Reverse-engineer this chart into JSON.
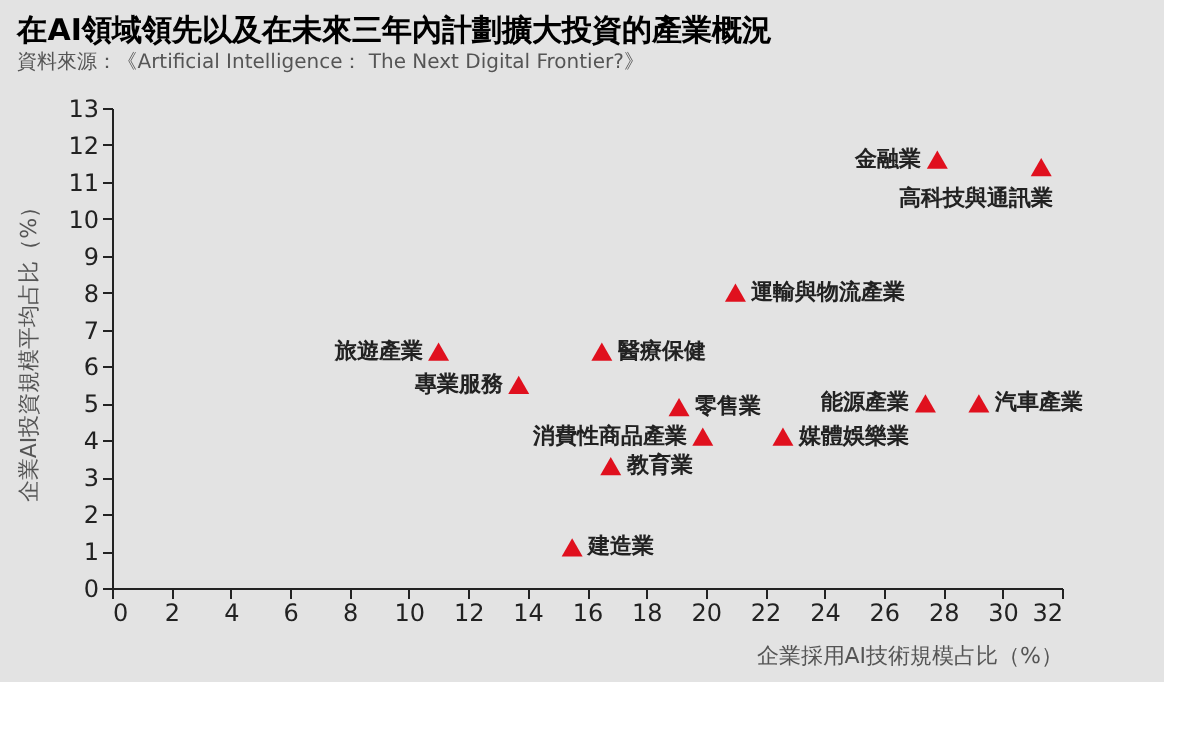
{
  "chart_data": {
    "type": "scatter",
    "title": "在AI領域領先以及在未來三年內計劃擴大投資的產業概況",
    "subtitle": "資料來源：《Artificial Intelligence： The Next Digital Frontier?》",
    "xlabel": "企業採用AI技術規模占比（%）",
    "ylabel": "企業AI投資規模平均占比（%）",
    "xlim": [
      0,
      32
    ],
    "xticks": [
      0,
      2,
      4,
      6,
      8,
      10,
      12,
      14,
      16,
      18,
      20,
      22,
      24,
      26,
      28,
      30,
      32
    ],
    "ylim": [
      0,
      13
    ],
    "yticks": [
      0,
      1,
      2,
      3,
      4,
      5,
      6,
      7,
      8,
      9,
      10,
      11,
      12,
      13
    ],
    "grid": false,
    "legend": false,
    "marker": "triangle",
    "series": [
      {
        "name": "旅遊產業",
        "color": "#e0101e",
        "x": [
          11.0
        ],
        "values": [
          6.4
        ]
      },
      {
        "name": "專業服務",
        "color": "#e0101e",
        "x": [
          13.7
        ],
        "values": [
          5.5
        ]
      },
      {
        "name": "建造業",
        "color": "#e0101e",
        "x": [
          15.5
        ],
        "values": [
          1.1
        ]
      },
      {
        "name": "醫療保健",
        "color": "#e0101e",
        "x": [
          16.5
        ],
        "values": [
          6.4
        ]
      },
      {
        "name": "零售業",
        "color": "#e0101e",
        "x": [
          19.1
        ],
        "values": [
          4.9
        ]
      },
      {
        "name": "消費性商品產業",
        "color": "#e0101e",
        "x": [
          19.9
        ],
        "values": [
          4.1
        ]
      },
      {
        "name": "教育業",
        "color": "#e0101e",
        "x": [
          16.8
        ],
        "values": [
          3.3
        ]
      },
      {
        "name": "運輸與物流產業",
        "color": "#e0101e",
        "x": [
          21.0
        ],
        "values": [
          8.0
        ]
      },
      {
        "name": "媒體娛樂業",
        "color": "#e0101e",
        "x": [
          22.6
        ],
        "values": [
          4.1
        ]
      },
      {
        "name": "能源產業",
        "color": "#e0101e",
        "x": [
          27.4
        ],
        "values": [
          5.0
        ]
      },
      {
        "name": "汽車產業",
        "color": "#e0101e",
        "x": [
          29.2
        ],
        "values": [
          5.0
        ]
      },
      {
        "name": "金融業",
        "color": "#e0101e",
        "x": [
          27.8
        ],
        "values": [
          11.6
        ]
      },
      {
        "name": "高科技與通訊業",
        "color": "#e0101e",
        "x": [
          31.3
        ],
        "values": [
          11.4
        ]
      }
    ]
  }
}
